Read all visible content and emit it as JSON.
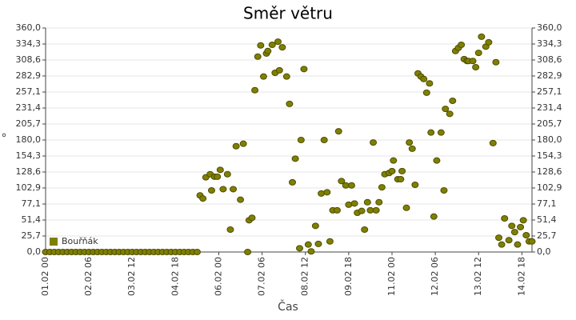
{
  "chart_data": {
    "type": "scatter",
    "title": "Směr větru",
    "x_label": "Čas",
    "y_label": "°",
    "grid": true,
    "legend": "lower left",
    "xlim": [
      "01.02 00",
      "15.02 01"
    ],
    "xticks": [
      "01.02 00",
      "02.02 06",
      "03.02 12",
      "04.02 18",
      "06.02 00",
      "07.02 06",
      "08.02 12",
      "09.02 18",
      "11.02 00",
      "12.02 06",
      "13.02 12",
      "14.02 18"
    ],
    "ylim": [
      0,
      360
    ],
    "yticks": [
      {
        "value": 0,
        "label": "0,0"
      },
      {
        "value": 25.7,
        "label": "25,7"
      },
      {
        "value": 51.4,
        "label": "51,4"
      },
      {
        "value": 77.1,
        "label": "77,1"
      },
      {
        "value": 102.9,
        "label": "102,9"
      },
      {
        "value": 128.6,
        "label": "128,6"
      },
      {
        "value": 154.3,
        "label": "154,3"
      },
      {
        "value": 180,
        "label": "180,0"
      },
      {
        "value": 205.7,
        "label": "205,7"
      },
      {
        "value": 231.4,
        "label": "231,4"
      },
      {
        "value": 257.1,
        "label": "257,1"
      },
      {
        "value": 282.9,
        "label": "282,9"
      },
      {
        "value": 308.6,
        "label": "308,6"
      },
      {
        "value": 334.3,
        "label": "334,3"
      },
      {
        "value": 360,
        "label": "360,0"
      }
    ],
    "series": [
      {
        "name": "Bouřňák",
        "color": "#808000",
        "x": [
          "01.02 00",
          "01.02 03",
          "01.02 06",
          "01.02 09",
          "01.02 12",
          "01.02 15",
          "01.02 18",
          "01.02 21",
          "02.02 00",
          "02.02 03",
          "02.02 06",
          "02.02 09",
          "02.02 12",
          "02.02 15",
          "02.02 18",
          "02.02 21",
          "03.02 00",
          "03.02 03",
          "03.02 06",
          "03.02 09",
          "03.02 12",
          "03.02 15",
          "03.02 18",
          "03.02 21",
          "04.02 00",
          "04.02 03",
          "04.02 06",
          "04.02 09",
          "04.02 12",
          "04.02 15",
          "04.02 18",
          "04.02 21",
          "05.02 00",
          "05.02 03",
          "05.02 06",
          "05.02 09",
          "05.02 11",
          "05.02 13",
          "05.02 15",
          "05.02 18",
          "05.02 19",
          "05.02 21",
          "05.02 23",
          "06.02 01",
          "06.02 03",
          "06.02 06",
          "06.02 08",
          "06.02 10",
          "06.02 12",
          "06.02 15",
          "06.02 17",
          "06.02 20",
          "06.02 21",
          "06.02 23",
          "07.02 01",
          "07.02 03",
          "07.02 05",
          "07.02 07",
          "07.02 09",
          "07.02 10",
          "07.02 13",
          "07.02 15",
          "07.02 17",
          "07.02 18",
          "07.02 20",
          "07.02 23",
          "08.02 01",
          "08.02 03",
          "08.02 05",
          "08.02 08",
          "08.02 09",
          "08.02 11",
          "08.02 14",
          "08.02 16",
          "08.02 19",
          "08.02 21",
          "08.02 23",
          "09.02 01",
          "09.02 03",
          "09.02 05",
          "09.02 07",
          "09.02 10",
          "09.02 11",
          "09.02 13",
          "09.02 16",
          "09.02 18",
          "09.02 20",
          "09.02 22",
          "10.02 00",
          "10.02 03",
          "10.02 05",
          "10.02 07",
          "10.02 09",
          "10.02 11",
          "10.02 13",
          "10.02 15",
          "10.02 17",
          "10.02 19",
          "10.02 22",
          "11.02 00",
          "11.02 01",
          "11.02 04",
          "11.02 06",
          "11.02 07",
          "11.02 10",
          "11.02 12",
          "11.02 14",
          "11.02 16",
          "11.02 18",
          "11.02 20",
          "11.02 22",
          "12.02 00",
          "12.02 02",
          "12.02 03",
          "12.02 05",
          "12.02 07",
          "12.02 10",
          "12.02 12",
          "12.02 13",
          "12.02 16",
          "12.02 18",
          "12.02 20",
          "12.02 22",
          "13.02 00",
          "13.02 02",
          "13.02 04",
          "13.02 05",
          "13.02 08",
          "13.02 10",
          "13.02 12",
          "13.02 14",
          "13.02 17",
          "13.02 19",
          "13.02 22",
          "14.02 00",
          "14.02 02",
          "14.02 04",
          "14.02 06",
          "14.02 09",
          "14.02 11",
          "14.02 13",
          "14.02 15",
          "14.02 17",
          "14.02 19",
          "14.02 21",
          "14.02 23",
          "15.02 01"
        ],
        "values": [
          0,
          0,
          0,
          0,
          0,
          0,
          0,
          0,
          0,
          0,
          0,
          0,
          0,
          0,
          0,
          0,
          0,
          0,
          0,
          0,
          0,
          0,
          0,
          0,
          0,
          0,
          0,
          0,
          0,
          0,
          0,
          0,
          0,
          0,
          0,
          0,
          91,
          86,
          120,
          125,
          99,
          121,
          121,
          132,
          101,
          125,
          36,
          101,
          170,
          84,
          174,
          0,
          51,
          55,
          260,
          314,
          332,
          282,
          319,
          323,
          333,
          288,
          338,
          292,
          329,
          282,
          238,
          112,
          150,
          6,
          180,
          294,
          12,
          1,
          42,
          13,
          94,
          180,
          96,
          17,
          67,
          67,
          194,
          114,
          107,
          76,
          107,
          78,
          63,
          66,
          36,
          80,
          67,
          176,
          67,
          80,
          104,
          125,
          127,
          130,
          147,
          117,
          117,
          130,
          71,
          176,
          166,
          108,
          287,
          282,
          278,
          256,
          271,
          192,
          57,
          147,
          192,
          99,
          230,
          222,
          243,
          323,
          328,
          333,
          310,
          307,
          307,
          307,
          297,
          320,
          346,
          330,
          337,
          175,
          305,
          23,
          12,
          54,
          19,
          42,
          32,
          12,
          40,
          51,
          27,
          17,
          17
        ]
      }
    ]
  }
}
